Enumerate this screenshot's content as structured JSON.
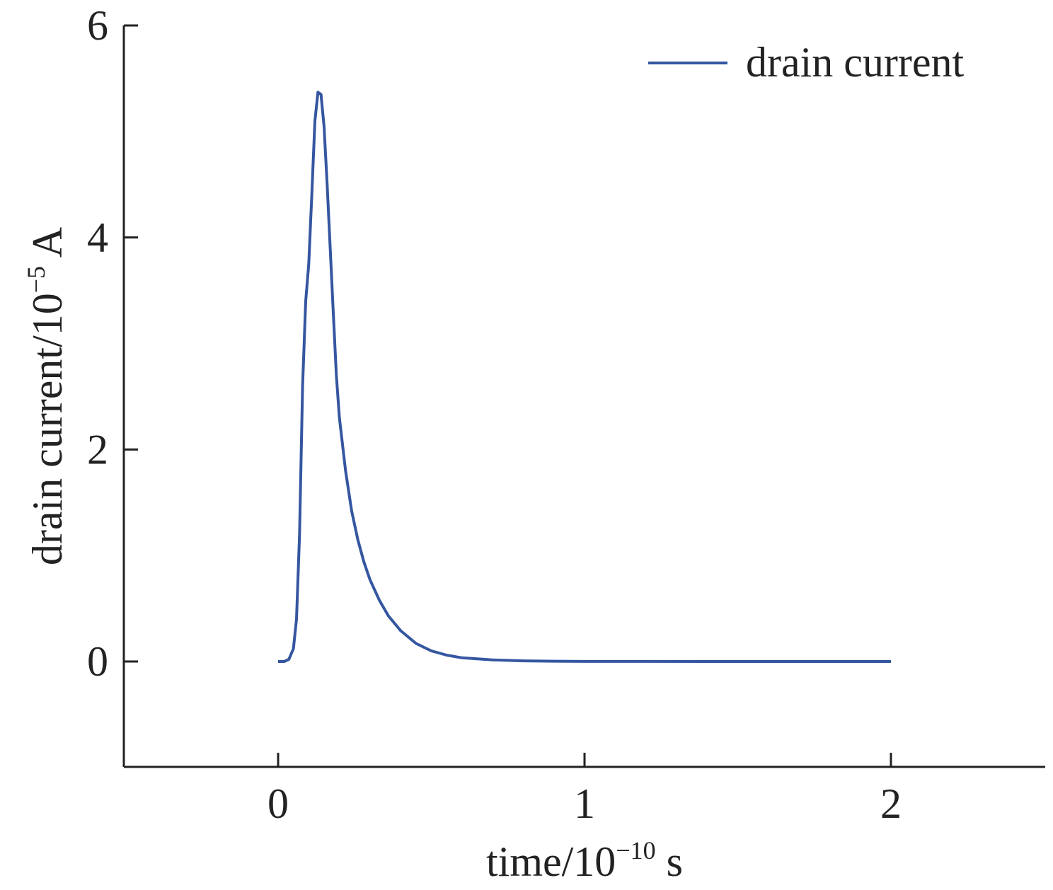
{
  "chart_data": {
    "type": "line",
    "title": "",
    "xlabel": {
      "base": "time/10",
      "exp": "−10",
      "unit": " s"
    },
    "ylabel": {
      "base": "drain current/10",
      "exp": "−5",
      "unit": " A"
    },
    "xlim": [
      -0.5,
      2.5
    ],
    "ylim": [
      -1,
      6
    ],
    "xticks": [
      0,
      1,
      2
    ],
    "yticks": [
      0,
      2,
      4,
      6
    ],
    "grid": false,
    "legend_position": "top-right",
    "series": [
      {
        "name": "drain current",
        "color": "#3556a0",
        "x": [
          0,
          0.02,
          0.035,
          0.05,
          0.06,
          0.07,
          0.08,
          0.09,
          0.1,
          0.11,
          0.12,
          0.13,
          0.14,
          0.15,
          0.16,
          0.17,
          0.18,
          0.19,
          0.2,
          0.22,
          0.24,
          0.26,
          0.28,
          0.3,
          0.33,
          0.36,
          0.4,
          0.45,
          0.5,
          0.55,
          0.6,
          0.7,
          0.8,
          0.9,
          1.0,
          1.2,
          1.4,
          1.6,
          1.8,
          2.0
        ],
        "y": [
          0,
          0,
          0.02,
          0.12,
          0.4,
          1.2,
          2.6,
          3.4,
          3.75,
          4.4,
          5.1,
          5.37,
          5.35,
          5.05,
          4.5,
          3.9,
          3.3,
          2.7,
          2.3,
          1.8,
          1.42,
          1.15,
          0.94,
          0.77,
          0.58,
          0.43,
          0.29,
          0.17,
          0.1,
          0.06,
          0.035,
          0.015,
          0.006,
          0.003,
          0.001,
          0.0005,
          0,
          0,
          0,
          0
        ]
      }
    ]
  }
}
